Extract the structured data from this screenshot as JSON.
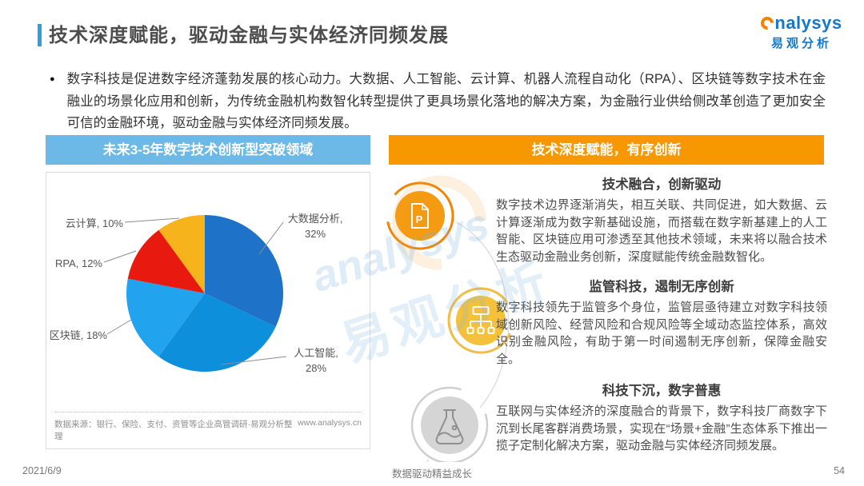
{
  "slide": {
    "title": "技术深度赋能，驱动金融与实体经济同频发展",
    "bullet_glyph": "●",
    "intro": "数字科技是促进数字经济蓬勃发展的核心动力。大数据、人工智能、云计算、机器人流程自动化（RPA）、区块链等数字技术在金融业的场景化应用和创新，为传统金融机构数智化转型提供了更具场景化落地的解决方案，为金融行业供给侧改革创造了更加安全可信的金融环境，驱动金融与实体经济同频发展。"
  },
  "logo": {
    "en": "nalysys",
    "cn": "易观分析"
  },
  "watermark": {
    "en": "analysys",
    "cn": "易观分析"
  },
  "left_panel": {
    "header": "未来3-5年数字技术创新型突破领域",
    "source": "数据来源：银行、保险、支付、资管等企业高管调研·易观分析整理",
    "website": "www.analysys.cn"
  },
  "right_panel": {
    "header": "技术深度赋能，有序创新",
    "sections": [
      {
        "icon": "document-p-icon",
        "title": "技术融合，创新驱动",
        "body": "数字技术边界逐渐消失，相互关联、共同促进，如大数据、云计算逐渐成为数字新基础设施，而搭载在数字新基建上的人工智能、区块链应用可渗透至其他技术领域，未来将以融合技术生态驱动金融业务创新，深度赋能传统金融数智化。"
      },
      {
        "icon": "network-icon",
        "title": "监管科技，遏制无序创新",
        "body": "数字科技领先于监管多个身位，监管层亟待建立对数字科技领域创新风险、经营风险和合规风险等全域动态监控体系，高效识别金融风险，有助于第一时间遏制无序创新，保障金融安全。"
      },
      {
        "icon": "flask-icon",
        "title": "科技下沉，数字普惠",
        "body": "互联网与实体经济的深度融合的背景下，数字科技厂商数字下沉到长尾客群消费场景，实现在“场景+金融”生态体系下推出一揽子定制化解决方案，驱动金融与实体经济同频发展。"
      }
    ]
  },
  "footer": {
    "date": "2021/6/9",
    "slogan": "数据驱动精益成长",
    "page": "54"
  },
  "chart_data": {
    "type": "pie",
    "title": "未来3-5年数字技术创新型突破领域",
    "labels": [
      "大数据分析",
      "人工智能",
      "区块链",
      "RPA",
      "云计算"
    ],
    "keys": [
      "big-data",
      "ai",
      "blockchain",
      "rpa",
      "cloud"
    ],
    "values": [
      32,
      28,
      18,
      12,
      10
    ],
    "colors": [
      "#1E73C8",
      "#0D8FDC",
      "#22A3EE",
      "#E8190F",
      "#F6B31B"
    ],
    "start_angle_deg": -90,
    "direction": "clockwise",
    "legend_position": "callout-labels",
    "callouts": {
      "big_data": {
        "line1": "大数据分析,",
        "line2": "32%"
      },
      "ai": {
        "line1": "人工智能,",
        "line2": "28%"
      },
      "blockchain": {
        "line1": "区块链, 18%"
      },
      "rpa": {
        "line1": "RPA, 12%"
      },
      "cloud": {
        "line1": "云计算, 10%"
      }
    }
  }
}
